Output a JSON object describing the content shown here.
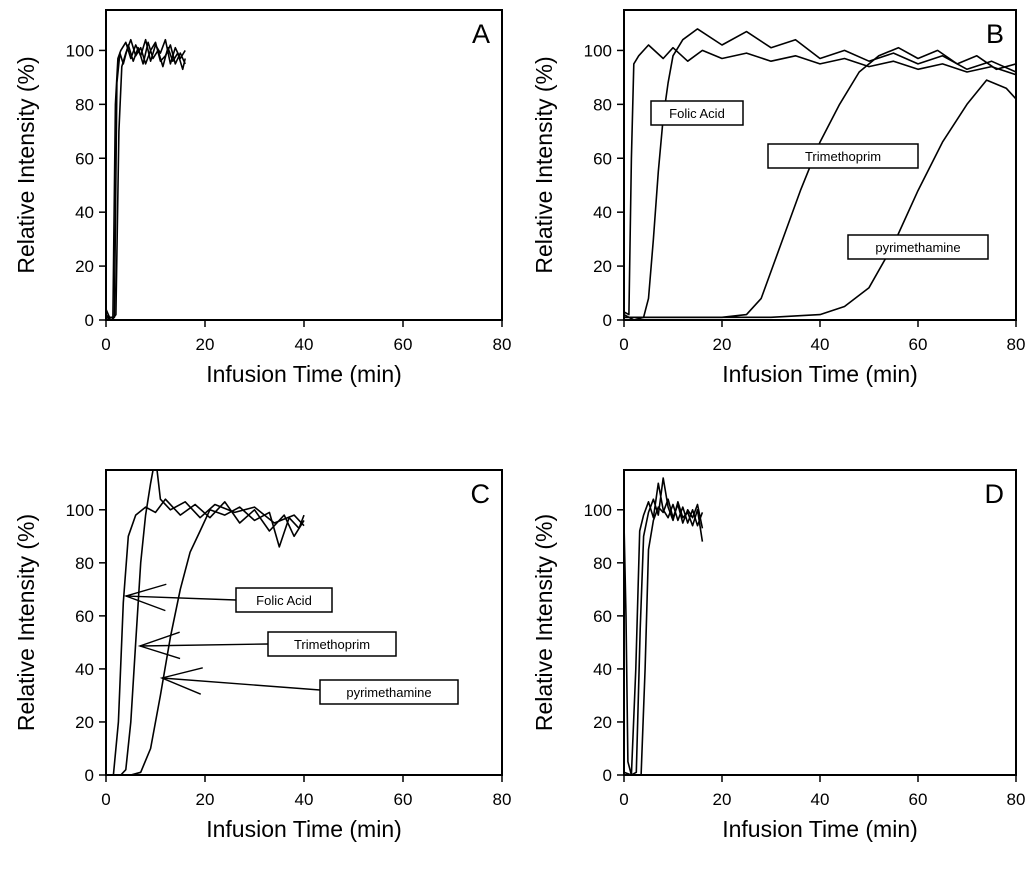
{
  "chart_data": [
    {
      "panel": "A",
      "type": "line",
      "xlabel": "Infusion Time (min)",
      "ylabel": "Relative Intensity (%)",
      "xlim": [
        0,
        80
      ],
      "ylim": [
        0,
        115
      ],
      "xticks": [
        0,
        20,
        40,
        60,
        80
      ],
      "yticks": [
        0,
        20,
        40,
        60,
        80,
        100
      ],
      "callouts": [],
      "series": [
        {
          "points": [
            [
              0,
              4
            ],
            [
              0.7,
              1
            ],
            [
              1.4,
              1
            ],
            [
              1.9,
              80
            ],
            [
              2.4,
              97
            ],
            [
              3,
              100
            ],
            [
              4,
              103
            ],
            [
              5,
              97
            ],
            [
              6,
              102
            ],
            [
              7,
              98
            ],
            [
              8,
              104
            ],
            [
              9,
              96
            ],
            [
              10,
              102
            ],
            [
              11,
              99
            ],
            [
              12,
              104
            ],
            [
              13,
              95
            ],
            [
              14,
              101
            ],
            [
              15,
              97
            ],
            [
              16,
              100
            ]
          ]
        },
        {
          "points": [
            [
              0,
              2
            ],
            [
              1,
              0
            ],
            [
              1.7,
              1
            ],
            [
              2.2,
              88
            ],
            [
              2.8,
              99
            ],
            [
              3.5,
              95
            ],
            [
              4.5,
              102
            ],
            [
              5.5,
              96
            ],
            [
              6.5,
              101
            ],
            [
              7.5,
              95
            ],
            [
              8.5,
              103
            ],
            [
              9.5,
              97
            ],
            [
              10.5,
              100
            ],
            [
              11.5,
              94
            ],
            [
              12.5,
              101
            ],
            [
              13.5,
              96
            ],
            [
              14.5,
              99
            ],
            [
              15.5,
              93
            ],
            [
              16,
              97
            ]
          ]
        },
        {
          "points": [
            [
              0,
              1
            ],
            [
              1.2,
              0
            ],
            [
              2,
              2
            ],
            [
              2.6,
              70
            ],
            [
              3.2,
              94
            ],
            [
              4,
              99
            ],
            [
              5,
              104
            ],
            [
              6,
              98
            ],
            [
              7,
              101
            ],
            [
              8,
              95
            ],
            [
              9,
              100
            ],
            [
              10,
              103
            ],
            [
              11,
              96
            ],
            [
              12,
              98
            ],
            [
              13,
              102
            ],
            [
              14,
              95
            ],
            [
              15,
              99
            ],
            [
              16,
              95
            ]
          ]
        }
      ]
    },
    {
      "panel": "B",
      "type": "line",
      "xlabel": "Infusion Time (min)",
      "ylabel": "Relative Intensity (%)",
      "xlim": [
        0,
        80
      ],
      "ylim": [
        0,
        115
      ],
      "xticks": [
        0,
        20,
        40,
        60,
        80
      ],
      "yticks": [
        0,
        20,
        40,
        60,
        80,
        100
      ],
      "callouts": [
        "Folic Acid",
        "Trimethoprim",
        "pyrimethamine"
      ],
      "series": [
        {
          "points": [
            [
              0,
              3
            ],
            [
              1,
              2
            ],
            [
              1.5,
              60
            ],
            [
              2,
              95
            ],
            [
              3,
              98
            ],
            [
              5,
              102
            ],
            [
              8,
              97
            ],
            [
              10,
              101
            ],
            [
              13,
              96
            ],
            [
              16,
              100
            ],
            [
              20,
              97
            ],
            [
              25,
              99
            ],
            [
              30,
              96
            ],
            [
              35,
              98
            ],
            [
              40,
              95
            ],
            [
              45,
              97
            ],
            [
              50,
              94
            ],
            [
              55,
              96
            ],
            [
              60,
              93
            ],
            [
              65,
              95
            ],
            [
              70,
              92
            ],
            [
              75,
              94
            ],
            [
              80,
              91
            ]
          ]
        },
        {
          "points": [
            [
              0,
              2
            ],
            [
              2,
              0
            ],
            [
              4,
              1
            ],
            [
              5,
              8
            ],
            [
              6,
              30
            ],
            [
              7,
              55
            ],
            [
              8,
              75
            ],
            [
              9,
              88
            ],
            [
              10,
              98
            ],
            [
              12,
              104
            ],
            [
              15,
              108
            ],
            [
              20,
              102
            ],
            [
              25,
              107
            ],
            [
              30,
              101
            ],
            [
              35,
              104
            ],
            [
              40,
              97
            ],
            [
              45,
              100
            ],
            [
              50,
              96
            ],
            [
              55,
              99
            ],
            [
              60,
              95
            ],
            [
              65,
              98
            ],
            [
              70,
              93
            ],
            [
              75,
              96
            ],
            [
              80,
              92
            ]
          ]
        },
        {
          "points": [
            [
              0,
              1
            ],
            [
              10,
              1
            ],
            [
              20,
              1
            ],
            [
              25,
              2
            ],
            [
              28,
              8
            ],
            [
              32,
              28
            ],
            [
              36,
              48
            ],
            [
              40,
              66
            ],
            [
              44,
              80
            ],
            [
              48,
              92
            ],
            [
              52,
              98
            ],
            [
              56,
              101
            ],
            [
              60,
              97
            ],
            [
              64,
              100
            ],
            [
              68,
              95
            ],
            [
              72,
              98
            ],
            [
              76,
              93
            ],
            [
              80,
              95
            ]
          ]
        },
        {
          "points": [
            [
              0,
              1
            ],
            [
              20,
              1
            ],
            [
              30,
              1
            ],
            [
              40,
              2
            ],
            [
              45,
              5
            ],
            [
              50,
              12
            ],
            [
              55,
              28
            ],
            [
              60,
              48
            ],
            [
              65,
              66
            ],
            [
              70,
              80
            ],
            [
              74,
              89
            ],
            [
              78,
              86
            ],
            [
              80,
              82
            ]
          ]
        }
      ]
    },
    {
      "panel": "C",
      "type": "line",
      "xlabel": "Infusion Time (min)",
      "ylabel": "Relative Intensity (%)",
      "xlim": [
        0,
        80
      ],
      "ylim": [
        0,
        115
      ],
      "xticks": [
        0,
        20,
        40,
        60,
        80
      ],
      "yticks": [
        0,
        20,
        40,
        60,
        80,
        100
      ],
      "callouts": [
        "Folic Acid",
        "Trimethoprim",
        "pyrimethamine"
      ],
      "series": [
        {
          "points": [
            [
              0,
              0
            ],
            [
              1.5,
              0
            ],
            [
              2.5,
              20
            ],
            [
              3.5,
              65
            ],
            [
              4.5,
              90
            ],
            [
              6,
              98
            ],
            [
              8,
              101
            ],
            [
              10,
              99
            ],
            [
              12,
              104
            ],
            [
              15,
              98
            ],
            [
              18,
              102
            ],
            [
              21,
              97
            ],
            [
              24,
              103
            ],
            [
              27,
              95
            ],
            [
              30,
              100
            ],
            [
              33,
              92
            ],
            [
              36,
              98
            ],
            [
              38,
              90
            ],
            [
              40,
              96
            ]
          ]
        },
        {
          "points": [
            [
              0,
              0
            ],
            [
              3,
              0
            ],
            [
              4,
              2
            ],
            [
              5,
              20
            ],
            [
              6,
              50
            ],
            [
              7,
              80
            ],
            [
              8,
              98
            ],
            [
              9,
              110
            ],
            [
              10,
              120
            ],
            [
              11,
              104
            ],
            [
              13,
              100
            ],
            [
              16,
              103
            ],
            [
              19,
              97
            ],
            [
              22,
              102
            ],
            [
              26,
              99
            ],
            [
              30,
              101
            ],
            [
              34,
              95
            ],
            [
              38,
              98
            ],
            [
              40,
              94
            ]
          ]
        },
        {
          "points": [
            [
              0,
              0
            ],
            [
              5,
              0
            ],
            [
              7,
              1
            ],
            [
              9,
              10
            ],
            [
              11,
              30
            ],
            [
              13,
              52
            ],
            [
              15,
              70
            ],
            [
              17,
              84
            ],
            [
              19,
              92
            ],
            [
              21,
              100
            ],
            [
              24,
              98
            ],
            [
              27,
              101
            ],
            [
              30,
              96
            ],
            [
              33,
              99
            ],
            [
              35,
              86
            ],
            [
              37,
              97
            ],
            [
              39,
              93
            ],
            [
              40,
              98
            ]
          ]
        }
      ]
    },
    {
      "panel": "D",
      "type": "line",
      "xlabel": "Infusion Time (min)",
      "ylabel": "Relative Intensity (%)",
      "xlim": [
        0,
        80
      ],
      "ylim": [
        0,
        115
      ],
      "xticks": [
        0,
        20,
        40,
        60,
        80
      ],
      "yticks": [
        0,
        20,
        40,
        60,
        80,
        100
      ],
      "callouts": [],
      "series": [
        {
          "points": [
            [
              0,
              95
            ],
            [
              0.4,
              60
            ],
            [
              0.8,
              5
            ],
            [
              1.5,
              0
            ],
            [
              2.4,
              40
            ],
            [
              3.2,
              92
            ],
            [
              4,
              98
            ],
            [
              5,
              103
            ],
            [
              6,
              97
            ],
            [
              7,
              110
            ],
            [
              8,
              100
            ],
            [
              9,
              97
            ],
            [
              10,
              102
            ],
            [
              11,
              96
            ],
            [
              12,
              101
            ],
            [
              13,
              95
            ],
            [
              14,
              100
            ],
            [
              15,
              94
            ],
            [
              16,
              99
            ]
          ]
        },
        {
          "points": [
            [
              0,
              1
            ],
            [
              1.5,
              0
            ],
            [
              2.5,
              1
            ],
            [
              3.3,
              55
            ],
            [
              4,
              90
            ],
            [
              5,
              99
            ],
            [
              6,
              104
            ],
            [
              7,
              98
            ],
            [
              8,
              112
            ],
            [
              9,
              101
            ],
            [
              10,
              96
            ],
            [
              11,
              103
            ],
            [
              12,
              97
            ],
            [
              13,
              99
            ],
            [
              14,
              94
            ],
            [
              15,
              100
            ],
            [
              16,
              88
            ]
          ]
        },
        {
          "points": [
            [
              0,
              0
            ],
            [
              2,
              0
            ],
            [
              3.5,
              0
            ],
            [
              4.3,
              40
            ],
            [
              5,
              85
            ],
            [
              6,
              96
            ],
            [
              7,
              101
            ],
            [
              8,
              99
            ],
            [
              9,
              104
            ],
            [
              10,
              97
            ],
            [
              11,
              102
            ],
            [
              12,
              95
            ],
            [
              13,
              100
            ],
            [
              14,
              97
            ],
            [
              15,
              102
            ],
            [
              16,
              93
            ]
          ]
        }
      ]
    }
  ]
}
